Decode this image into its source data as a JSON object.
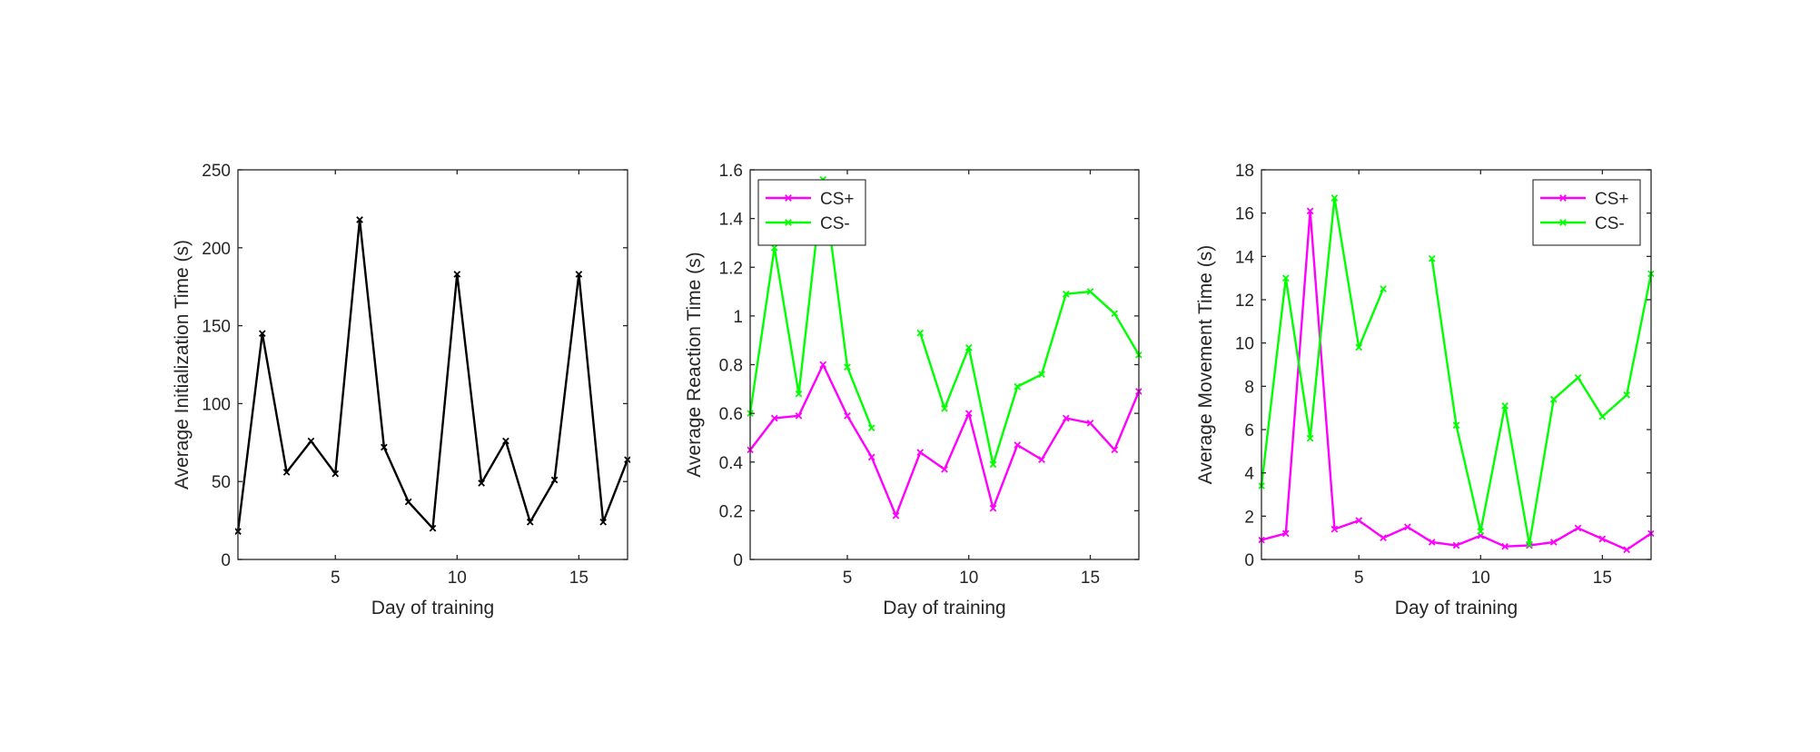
{
  "chart_data": [
    {
      "type": "line",
      "xlabel": "Day of training",
      "ylabel": "Average Initialization Time (s)",
      "xlim": [
        1,
        17
      ],
      "ylim": [
        0,
        250
      ],
      "xticks": [
        5,
        10,
        15
      ],
      "yticks": [
        0,
        50,
        100,
        150,
        200,
        250
      ],
      "grid": false,
      "legend": null,
      "series": [
        {
          "color": "#000000",
          "marker": "x",
          "x": [
            1,
            2,
            3,
            4,
            5,
            6,
            7,
            8,
            9,
            10,
            11,
            12,
            13,
            14,
            15,
            16,
            17
          ],
          "y": [
            18,
            145,
            56,
            76,
            55,
            218,
            72,
            37,
            20,
            183,
            49,
            76,
            24,
            51,
            183,
            24,
            64
          ]
        }
      ]
    },
    {
      "type": "line",
      "xlabel": "Day of training",
      "ylabel": "Average Reaction Time (s)",
      "xlim": [
        1,
        17
      ],
      "ylim": [
        0,
        1.6
      ],
      "xticks": [
        5,
        10,
        15
      ],
      "yticks": [
        0,
        0.2,
        0.4,
        0.6,
        0.8,
        1,
        1.2,
        1.4,
        1.6
      ],
      "grid": false,
      "legend": "top-left",
      "series": [
        {
          "name": "CS+",
          "color": "#ff00ff",
          "marker": "x",
          "x": [
            1,
            2,
            3,
            4,
            5,
            6,
            7,
            8,
            9,
            10,
            11,
            12,
            13,
            14,
            15,
            16,
            17
          ],
          "y": [
            0.45,
            0.58,
            0.59,
            0.8,
            0.59,
            0.42,
            0.18,
            0.44,
            0.37,
            0.6,
            0.21,
            0.47,
            0.41,
            0.58,
            0.56,
            0.45,
            0.69
          ]
        },
        {
          "name": "CS-",
          "color": "#00ff00",
          "marker": "x",
          "x": [
            1,
            2,
            3,
            4,
            5,
            6,
            7,
            8,
            9,
            10,
            11,
            12,
            13,
            14,
            15,
            16,
            17
          ],
          "y": [
            0.6,
            1.28,
            0.68,
            1.56,
            0.79,
            0.54,
            null,
            0.93,
            0.62,
            0.87,
            0.39,
            0.71,
            0.76,
            1.09,
            1.1,
            1.01,
            0.84
          ]
        }
      ]
    },
    {
      "type": "line",
      "xlabel": "Day of training",
      "ylabel": "Average Movement Time (s)",
      "xlim": [
        1,
        17
      ],
      "ylim": [
        0,
        18
      ],
      "xticks": [
        5,
        10,
        15
      ],
      "yticks": [
        0,
        2,
        4,
        6,
        8,
        10,
        12,
        14,
        16,
        18
      ],
      "grid": false,
      "legend": "top-right",
      "series": [
        {
          "name": "CS+",
          "color": "#ff00ff",
          "marker": "x",
          "x": [
            1,
            2,
            3,
            4,
            5,
            6,
            7,
            8,
            9,
            10,
            11,
            12,
            13,
            14,
            15,
            16,
            17
          ],
          "y": [
            0.9,
            1.2,
            16.1,
            1.4,
            1.8,
            1.0,
            1.5,
            0.8,
            0.65,
            1.1,
            0.6,
            0.65,
            0.8,
            1.45,
            0.95,
            0.45,
            1.2
          ]
        },
        {
          "name": "CS-",
          "color": "#00ff00",
          "marker": "x",
          "x": [
            1,
            2,
            3,
            4,
            5,
            6,
            7,
            8,
            9,
            10,
            11,
            12,
            13,
            14,
            15,
            16,
            17
          ],
          "y": [
            3.4,
            13.0,
            5.6,
            16.7,
            9.8,
            12.5,
            null,
            13.9,
            6.2,
            1.3,
            7.1,
            0.7,
            7.4,
            8.4,
            6.6,
            7.6,
            13.2
          ]
        }
      ]
    }
  ]
}
